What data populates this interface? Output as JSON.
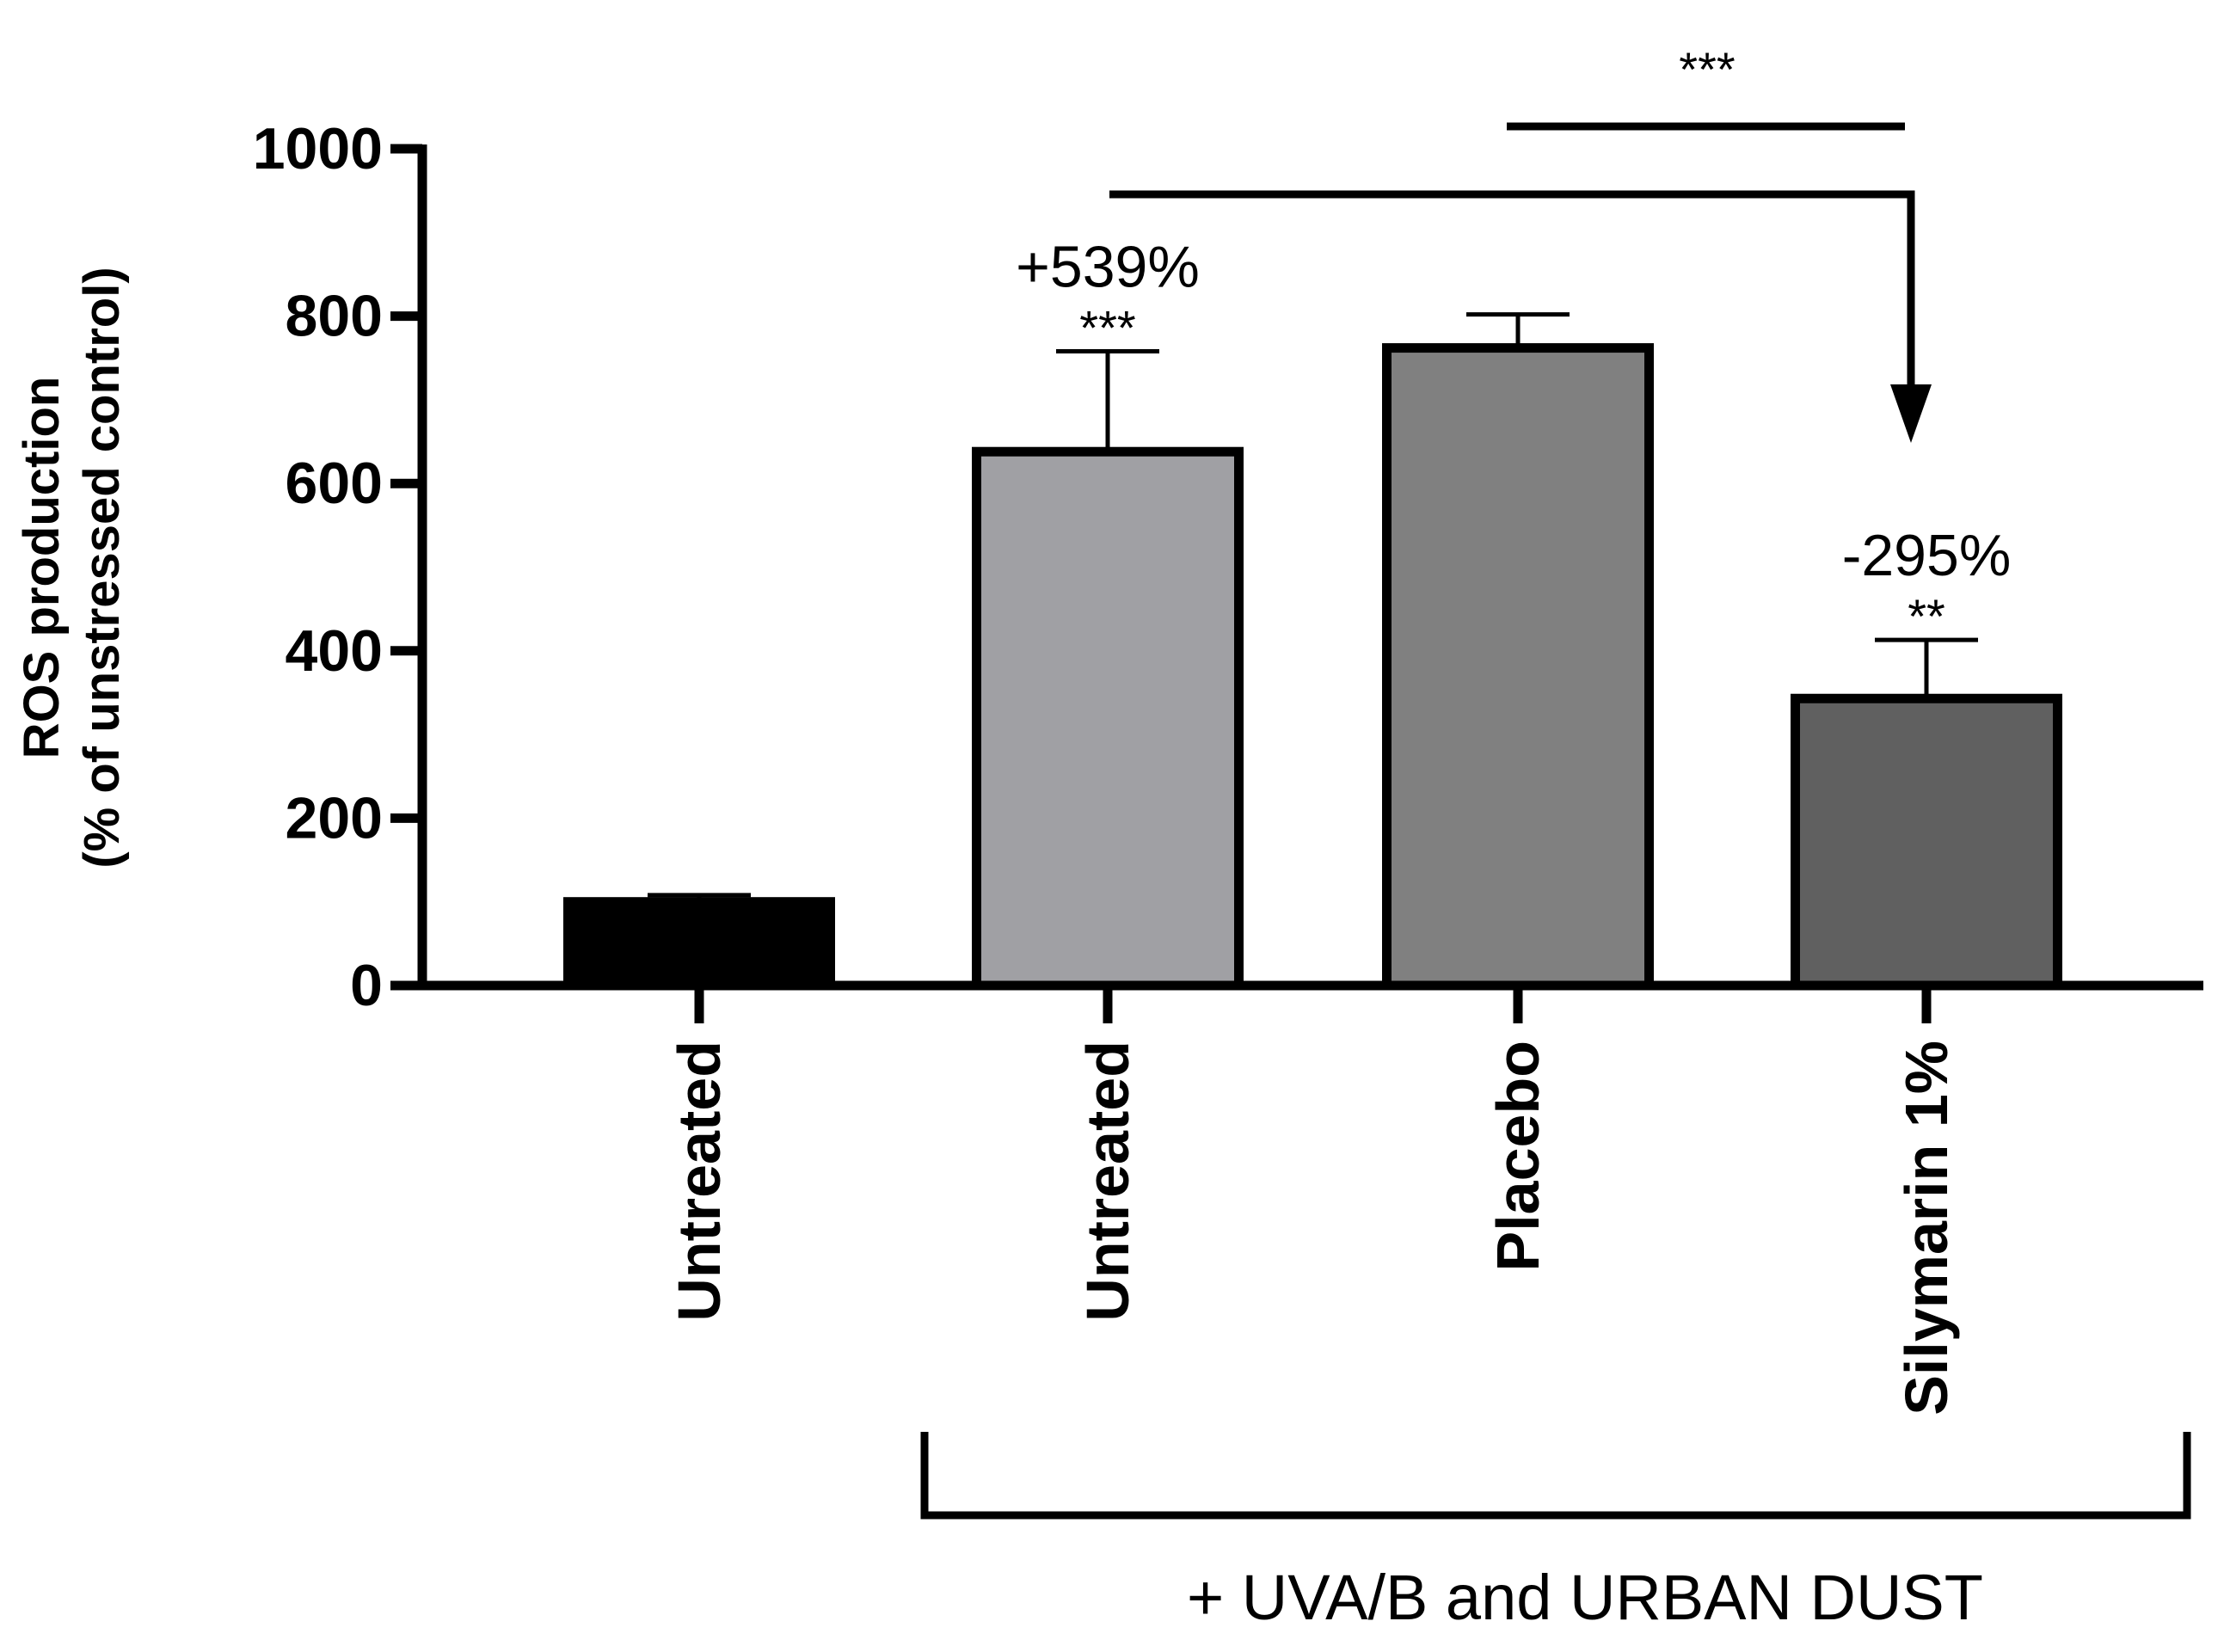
{
  "chart_data": {
    "type": "bar",
    "categories": [
      "Untreated",
      "Untreated",
      "Placebo",
      "Silymarin 1%"
    ],
    "values": [
      100,
      638,
      762,
      343
    ],
    "errors": [
      8,
      120,
      40,
      70
    ],
    "colors": [
      "#000000",
      "#a0a0a4",
      "#808080",
      "#606060"
    ],
    "ylabel_line1": "ROS production",
    "ylabel_line2": "(% of unstressed control)",
    "ylim": [
      0,
      1000
    ],
    "yticks": [
      "0",
      "200",
      "400",
      "600",
      "800",
      "1000"
    ],
    "annotations": [
      {
        "bar_index": 1,
        "percent": "+539%",
        "stars": "***"
      },
      {
        "bar_index": 3,
        "percent": "-295%",
        "stars": "**"
      }
    ],
    "comparison_stars": "***",
    "group_label": "+ UVA/B and URBAN DUST",
    "group_bar_indices": [
      1,
      2,
      3
    ],
    "grid": false,
    "legend": "none"
  }
}
